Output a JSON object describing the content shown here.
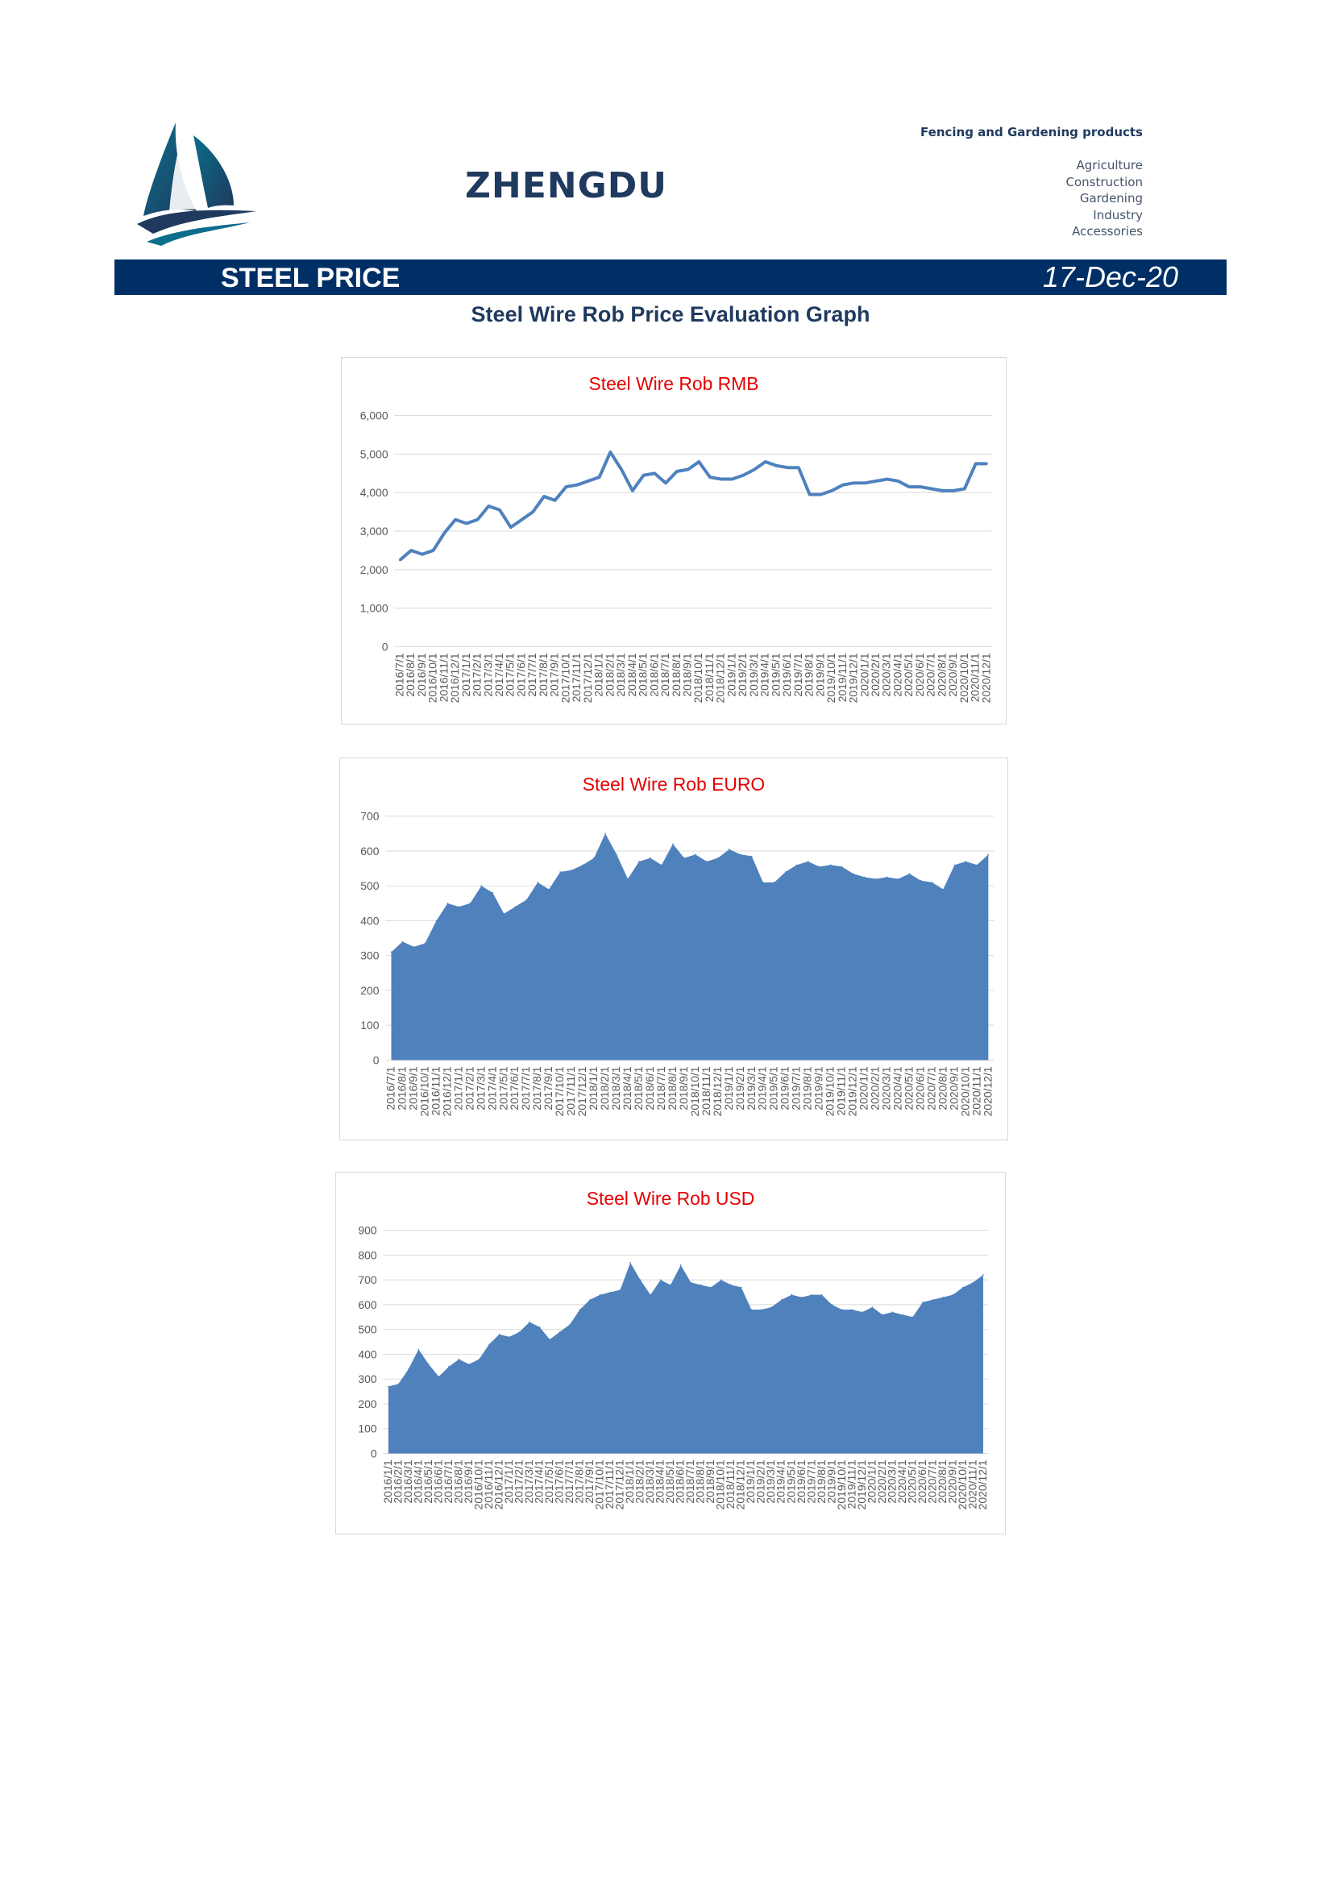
{
  "header": {
    "brand": "ZHENGDU",
    "tagline": "Fencing and Gardening products",
    "categories": [
      "Agriculture",
      "Construction",
      "Gardening",
      "Industry",
      "Accessories"
    ]
  },
  "banner": {
    "title": "STEEL PRICE",
    "date": "17-Dec-20"
  },
  "page_heading": "Steel Wire Rob Price Evaluation Graph",
  "colors": {
    "brand_navy": "#1f3a5e",
    "banner_bg": "#002f66",
    "chart_title": "#e60000",
    "series": "#4f81bd"
  },
  "chart_data": [
    {
      "type": "line",
      "title": "Steel Wire Rob RMB",
      "xlabel": "",
      "ylabel": "",
      "ylim": [
        0,
        6000
      ],
      "yticks": [
        0,
        1000,
        2000,
        3000,
        4000,
        5000,
        6000
      ],
      "ytick_labels": [
        "0",
        "1,000",
        "2,000",
        "3,000",
        "4,000",
        "5,000",
        "6,000"
      ],
      "grid": true,
      "legend": false,
      "x_labels": [
        "2016/7/1",
        "2016/8/1",
        "2016/9/1",
        "2016/10/1",
        "2016/11/1",
        "2016/12/1",
        "2017/1/1",
        "2017/2/1",
        "2017/3/1",
        "2017/4/1",
        "2017/5/1",
        "2017/6/1",
        "2017/7/1",
        "2017/8/1",
        "2017/9/1",
        "2017/10/1",
        "2017/11/1",
        "2017/12/1",
        "2018/1/1",
        "2018/2/1",
        "2018/3/1",
        "2018/4/1",
        "2018/5/1",
        "2018/6/1",
        "2018/7/1",
        "2018/8/1",
        "2018/9/1",
        "2018/10/1",
        "2018/11/1",
        "2018/12/1",
        "2019/1/1",
        "2019/2/1",
        "2019/3/1",
        "2019/4/1",
        "2019/5/1",
        "2019/6/1",
        "2019/7/1",
        "2019/8/1",
        "2019/9/1",
        "2019/10/1",
        "2019/11/1",
        "2019/12/1",
        "2020/1/1",
        "2020/2/1",
        "2020/3/1",
        "2020/4/1",
        "2020/5/1",
        "2020/6/1",
        "2020/7/1",
        "2020/8/1",
        "2020/9/1",
        "2020/10/1",
        "2020/11/1",
        "2020/12/1"
      ],
      "series": [
        {
          "values": [
            2250,
            2500,
            2400,
            2500,
            2950,
            3300,
            3200,
            3300,
            3650,
            3550,
            3100,
            3300,
            3500,
            3900,
            3800,
            4150,
            4200,
            4300,
            4400,
            5050,
            4600,
            4050,
            4450,
            4500,
            4250,
            4550,
            4600,
            4800,
            4400,
            4350,
            4350,
            4450,
            4600,
            4800,
            4700,
            4650,
            4650,
            3950,
            3950,
            4050,
            4200,
            4250,
            4250,
            4300,
            4350,
            4300,
            4150,
            4150,
            4100,
            4050,
            4050,
            4100,
            4750,
            4750
          ],
          "x_index": [
            0,
            1,
            2,
            3,
            4,
            5,
            6,
            7,
            8,
            9,
            10,
            11,
            12,
            13,
            14,
            15,
            16,
            17,
            18,
            19,
            20,
            21,
            22,
            23,
            24,
            25,
            26,
            27,
            28,
            29,
            30,
            31,
            32,
            33,
            34,
            35,
            36,
            37,
            38,
            39,
            40,
            41,
            42,
            43,
            44,
            45,
            46,
            47,
            48,
            49,
            50,
            51,
            52,
            53
          ]
        }
      ]
    },
    {
      "type": "area",
      "title": "Steel Wire Rob EURO",
      "xlabel": "",
      "ylabel": "",
      "ylim": [
        0,
        700
      ],
      "yticks": [
        0,
        100,
        200,
        300,
        400,
        500,
        600,
        700
      ],
      "ytick_labels": [
        "0",
        "100",
        "200",
        "300",
        "400",
        "500",
        "600",
        "700"
      ],
      "grid": true,
      "legend": false,
      "x_labels": [
        "2016/7/1",
        "2016/8/1",
        "2016/9/1",
        "2016/10/1",
        "2016/11/1",
        "2016/12/1",
        "2017/1/1",
        "2017/2/1",
        "2017/3/1",
        "2017/4/1",
        "2017/5/1",
        "2017/6/1",
        "2017/7/1",
        "2017/8/1",
        "2017/9/1",
        "2017/10/1",
        "2017/11/1",
        "2017/12/1",
        "2018/1/1",
        "2018/2/1",
        "2018/3/1",
        "2018/4/1",
        "2018/5/1",
        "2018/6/1",
        "2018/7/1",
        "2018/8/1",
        "2018/9/1",
        "2018/10/1",
        "2018/11/1",
        "2018/12/1",
        "2019/1/1",
        "2019/2/1",
        "2019/3/1",
        "2019/4/1",
        "2019/5/1",
        "2019/6/1",
        "2019/7/1",
        "2019/8/1",
        "2019/9/1",
        "2019/10/1",
        "2019/11/1",
        "2019/12/1",
        "2020/1/1",
        "2020/2/1",
        "2020/3/1",
        "2020/4/1",
        "2020/5/1",
        "2020/6/1",
        "2020/7/1",
        "2020/8/1",
        "2020/9/1",
        "2020/10/1",
        "2020/11/1",
        "2020/12/1"
      ],
      "series": [
        {
          "values": [
            310,
            340,
            325,
            335,
            400,
            450,
            440,
            450,
            500,
            480,
            420,
            440,
            460,
            510,
            490,
            540,
            545,
            560,
            580,
            650,
            590,
            520,
            570,
            580,
            560,
            620,
            580,
            590,
            570,
            580,
            605,
            590,
            585,
            510,
            510,
            540,
            560,
            570,
            555,
            560,
            555,
            535,
            525,
            520,
            525,
            520,
            535,
            515,
            510,
            490,
            560,
            570,
            560,
            590
          ]
        }
      ]
    },
    {
      "type": "area",
      "title": "Steel Wire Rob USD",
      "xlabel": "",
      "ylabel": "",
      "ylim": [
        0,
        900
      ],
      "yticks": [
        0,
        100,
        200,
        300,
        400,
        500,
        600,
        700,
        800,
        900
      ],
      "ytick_labels": [
        "0",
        "100",
        "200",
        "300",
        "400",
        "500",
        "600",
        "700",
        "800",
        "900"
      ],
      "grid": true,
      "legend": false,
      "x_labels": [
        "2016/1/1",
        "2016/2/1",
        "2016/3/1",
        "2016/4/1",
        "2016/5/1",
        "2016/6/1",
        "2016/7/1",
        "2016/8/1",
        "2016/9/1",
        "2016/10/1",
        "2016/11/1",
        "2016/12/1",
        "2017/1/1",
        "2017/2/1",
        "2017/3/1",
        "2017/4/1",
        "2017/5/1",
        "2017/6/1",
        "2017/7/1",
        "2017/8/1",
        "2017/9/1",
        "2017/10/1",
        "2017/11/1",
        "2017/12/1",
        "2018/1/1",
        "2018/2/1",
        "2018/3/1",
        "2018/4/1",
        "2018/5/1",
        "2018/6/1",
        "2018/7/1",
        "2018/8/1",
        "2018/9/1",
        "2018/10/1",
        "2018/11/1",
        "2018/12/1",
        "2019/1/1",
        "2019/2/1",
        "2019/3/1",
        "2019/4/1",
        "2019/5/1",
        "2019/6/1",
        "2019/7/1",
        "2019/8/1",
        "2019/9/1",
        "2019/10/1",
        "2019/11/1",
        "2019/12/1",
        "2020/1/1",
        "2020/2/1",
        "2020/3/1",
        "2020/4/1",
        "2020/5/1",
        "2020/6/1",
        "2020/7/1",
        "2020/8/1",
        "2020/9/1",
        "2020/10/1",
        "2020/11/1",
        "2020/12/1"
      ],
      "series": [
        {
          "values": [
            270,
            280,
            340,
            420,
            360,
            310,
            350,
            380,
            360,
            380,
            440,
            480,
            470,
            490,
            530,
            510,
            460,
            490,
            520,
            580,
            620,
            640,
            650,
            660,
            770,
            700,
            640,
            700,
            680,
            760,
            690,
            680,
            670,
            700,
            680,
            670,
            580,
            580,
            590,
            620,
            640,
            630,
            640,
            640,
            600,
            580,
            580,
            570,
            590,
            560,
            570,
            560,
            550,
            610,
            620,
            630,
            640,
            670,
            690,
            720
          ]
        }
      ]
    }
  ]
}
